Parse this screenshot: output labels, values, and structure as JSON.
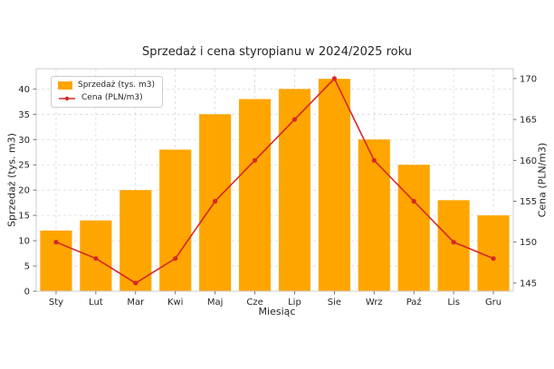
{
  "chart_data": {
    "type": "bar",
    "combo": "bar+line",
    "title": "Sprzedaż i cena styropianu w 2024/2025 roku",
    "xlabel": "Miesiąc",
    "ylabel_left": "Sprzedaż (tys. m3)",
    "ylabel_right": "Cena (PLN/m3)",
    "categories": [
      "Sty",
      "Lut",
      "Mar",
      "Kwi",
      "Maj",
      "Cze",
      "Lip",
      "Sie",
      "Wrz",
      "Paź",
      "Lis",
      "Gru"
    ],
    "series": [
      {
        "name": "Sprzedaż (tys. m3)",
        "type": "bar",
        "axis": "left",
        "color": "#FFA500",
        "values": [
          12,
          14,
          20,
          28,
          35,
          38,
          40,
          42,
          30,
          25,
          18,
          15
        ]
      },
      {
        "name": "Cena (PLN/m3)",
        "type": "line",
        "axis": "right",
        "color": "#d62728",
        "values": [
          150,
          148,
          145,
          148,
          155,
          160,
          165,
          170,
          160,
          155,
          150,
          148
        ]
      }
    ],
    "ylim_left": [
      0,
      44
    ],
    "ylim_right": [
      144,
      171.2
    ],
    "yticks_left": [
      0,
      5,
      10,
      15,
      20,
      25,
      30,
      35,
      40
    ],
    "yticks_right": [
      145,
      150,
      155,
      160,
      165,
      170
    ],
    "grid": true,
    "grid_style": "dashed",
    "legend_position": "upper left",
    "colors": {
      "grid": "#d9d9d9",
      "frame": "#cccccc",
      "text": "#262626"
    }
  }
}
